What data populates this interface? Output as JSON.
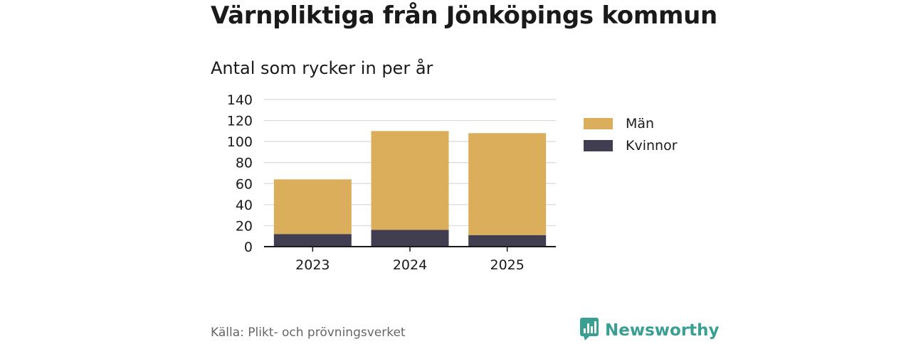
{
  "header": {
    "title": "Värnpliktiga från Jönköpings kommun",
    "subtitle": "Antal som rycker in per år"
  },
  "chart_data": {
    "type": "bar",
    "stacked": true,
    "categories": [
      "2023",
      "2024",
      "2025"
    ],
    "series": [
      {
        "name": "Kvinnor",
        "values": [
          12,
          16,
          11
        ],
        "color": "#403e50"
      },
      {
        "name": "Män",
        "values": [
          52,
          94,
          97
        ],
        "color": "#dbae5b"
      }
    ],
    "ylim": [
      0,
      140
    ],
    "yticks": [
      0,
      20,
      40,
      60,
      80,
      100,
      120,
      140
    ],
    "grid": true,
    "legend": "right",
    "legend_order": [
      "Män",
      "Kvinnor"
    ]
  },
  "footer": {
    "source": "Källa: Plikt- och prövningsverket",
    "brand": "Newsworthy",
    "brand_icon": "bar-chart-badge-icon",
    "brand_color": "#3a9f93"
  }
}
